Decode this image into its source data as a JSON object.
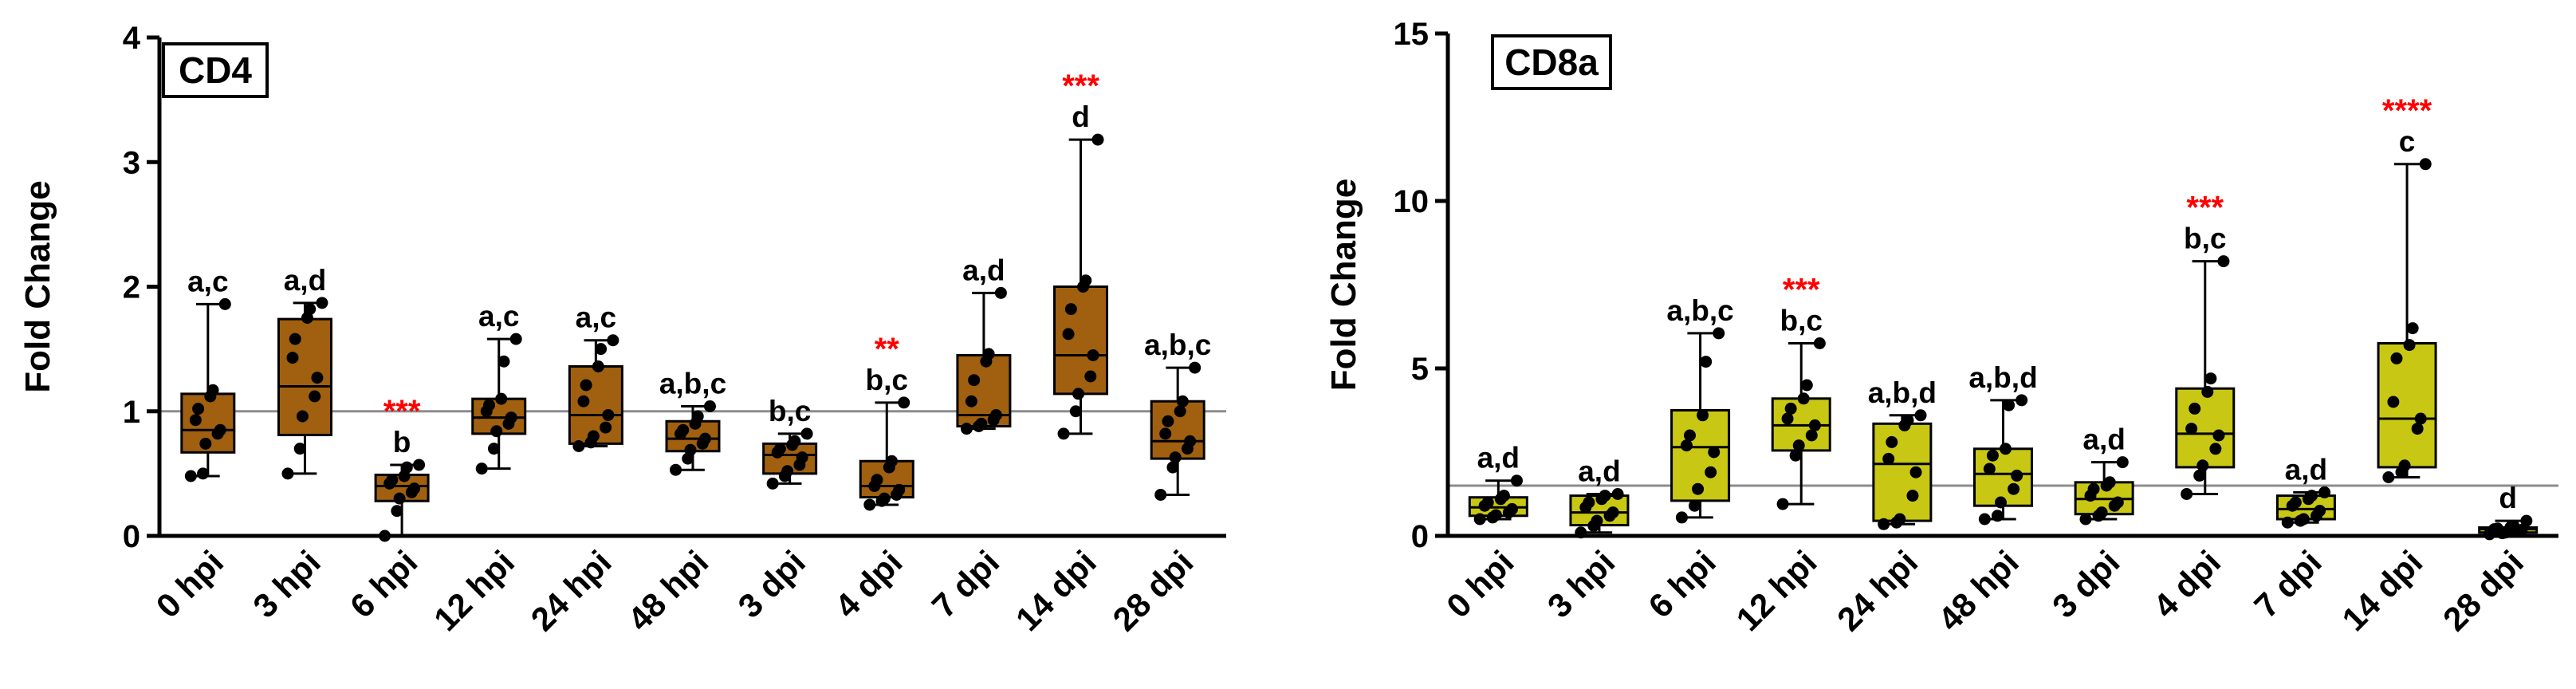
{
  "chart_data": [
    {
      "type": "box",
      "title": "CD4",
      "ylabel": "Fold Change",
      "xlabel": "",
      "ylim": [
        0,
        4
      ],
      "yticks": [
        0,
        1,
        2,
        3,
        4
      ],
      "reference_line": 1,
      "box_color": "#a0600f",
      "categories": [
        "0 hpi",
        "3 hpi",
        "6 hpi",
        "12 hpi",
        "24 hpi",
        "48 hpi",
        "3 dpi",
        "4 dpi",
        "7 dpi",
        "14 dpi",
        "28 dpi"
      ],
      "boxes": [
        {
          "min": 0.48,
          "q1": 0.67,
          "median": 0.85,
          "q3": 1.14,
          "max": 1.86,
          "letters": "a,c",
          "stars": "",
          "points": [
            0.48,
            0.5,
            0.74,
            0.82,
            0.85,
            0.93,
            1.02,
            1.12,
            1.17,
            1.86
          ]
        },
        {
          "min": 0.5,
          "q1": 0.81,
          "median": 1.2,
          "q3": 1.74,
          "max": 1.87,
          "letters": "a,d",
          "stars": "",
          "points": [
            0.5,
            0.7,
            0.96,
            1.12,
            1.27,
            1.43,
            1.58,
            1.75,
            1.82,
            1.87
          ]
        },
        {
          "min": 0.0,
          "q1": 0.28,
          "median": 0.4,
          "q3": 0.49,
          "max": 0.57,
          "letters": "b",
          "stars": "***",
          "points": [
            0.0,
            0.2,
            0.3,
            0.35,
            0.38,
            0.42,
            0.45,
            0.48,
            0.55,
            0.57
          ]
        },
        {
          "min": 0.54,
          "q1": 0.82,
          "median": 0.95,
          "q3": 1.1,
          "max": 1.58,
          "letters": "a,c",
          "stars": "",
          "points": [
            0.54,
            0.7,
            0.84,
            0.9,
            0.95,
            1.0,
            1.05,
            1.1,
            1.4,
            1.58
          ]
        },
        {
          "min": 0.72,
          "q1": 0.74,
          "median": 0.97,
          "q3": 1.36,
          "max": 1.57,
          "letters": "a,c",
          "stars": "",
          "points": [
            0.72,
            0.75,
            0.8,
            0.87,
            0.97,
            1.08,
            1.21,
            1.36,
            1.5,
            1.57
          ]
        },
        {
          "min": 0.53,
          "q1": 0.68,
          "median": 0.78,
          "q3": 0.92,
          "max": 1.04,
          "letters": "a,b,c",
          "stars": "",
          "points": [
            0.53,
            0.62,
            0.69,
            0.74,
            0.78,
            0.82,
            0.85,
            0.9,
            0.96,
            1.04
          ]
        },
        {
          "min": 0.42,
          "q1": 0.5,
          "median": 0.65,
          "q3": 0.74,
          "max": 0.82,
          "letters": "b,c",
          "stars": "",
          "points": [
            0.42,
            0.48,
            0.52,
            0.57,
            0.63,
            0.67,
            0.7,
            0.73,
            0.76,
            0.82
          ]
        },
        {
          "min": 0.25,
          "q1": 0.31,
          "median": 0.4,
          "q3": 0.6,
          "max": 1.07,
          "letters": "b,c",
          "stars": "**",
          "points": [
            0.25,
            0.28,
            0.3,
            0.33,
            0.37,
            0.4,
            0.45,
            0.55,
            0.6,
            1.07
          ]
        },
        {
          "min": 0.86,
          "q1": 0.88,
          "median": 0.97,
          "q3": 1.45,
          "max": 1.95,
          "letters": "a,d",
          "stars": "",
          "points": [
            0.86,
            0.88,
            0.9,
            0.93,
            0.97,
            1.08,
            1.25,
            1.4,
            1.46,
            1.95
          ]
        },
        {
          "min": 0.82,
          "q1": 1.14,
          "median": 1.45,
          "q3": 2.0,
          "max": 3.18,
          "letters": "d",
          "stars": "***",
          "points": [
            0.82,
            1.0,
            1.14,
            1.28,
            1.45,
            1.62,
            1.82,
            2.0,
            2.05,
            3.18
          ]
        },
        {
          "min": 0.33,
          "q1": 0.62,
          "median": 0.76,
          "q3": 1.08,
          "max": 1.35,
          "letters": "a,b,c",
          "stars": "",
          "points": [
            0.33,
            0.55,
            0.63,
            0.7,
            0.76,
            0.82,
            0.92,
            1.0,
            1.08,
            1.35
          ]
        }
      ]
    },
    {
      "type": "box",
      "title": "CD8a",
      "ylabel": "Fold Change",
      "xlabel": "",
      "ylim": [
        0,
        15
      ],
      "yticks": [
        0,
        5,
        10,
        15
      ],
      "reference_line": 1.5,
      "box_color": "#c8c814",
      "categories": [
        "0 hpi",
        "3 hpi",
        "6 hpi",
        "12 hpi",
        "24 hpi",
        "48 hpi",
        "3 dpi",
        "4 dpi",
        "7 dpi",
        "14 dpi",
        "28 dpi"
      ],
      "boxes": [
        {
          "min": 0.5,
          "q1": 0.6,
          "median": 0.85,
          "q3": 1.15,
          "max": 1.65,
          "letters": "a,d",
          "stars": "",
          "points": [
            0.5,
            0.55,
            0.62,
            0.7,
            0.8,
            0.9,
            1.0,
            1.1,
            1.2,
            1.65
          ]
        },
        {
          "min": 0.1,
          "q1": 0.32,
          "median": 0.7,
          "q3": 1.2,
          "max": 1.25,
          "letters": "a,d",
          "stars": "",
          "points": [
            0.1,
            0.3,
            0.45,
            0.6,
            0.7,
            0.85,
            1.0,
            1.1,
            1.2,
            1.25
          ]
        },
        {
          "min": 0.55,
          "q1": 1.05,
          "median": 2.65,
          "q3": 3.75,
          "max": 6.05,
          "letters": "a,b,c",
          "stars": "",
          "points": [
            0.55,
            0.9,
            1.4,
            1.9,
            2.5,
            2.7,
            3.0,
            3.6,
            5.2,
            6.05
          ]
        },
        {
          "min": 0.95,
          "q1": 2.55,
          "median": 3.3,
          "q3": 4.1,
          "max": 5.75,
          "letters": "b,c",
          "stars": "***",
          "points": [
            0.95,
            2.4,
            2.7,
            3.0,
            3.3,
            3.5,
            3.8,
            4.1,
            4.5,
            5.75
          ]
        },
        {
          "min": 0.35,
          "q1": 0.45,
          "median": 2.15,
          "q3": 3.35,
          "max": 3.6,
          "letters": "a,b,d",
          "stars": "",
          "points": [
            0.35,
            0.4,
            0.5,
            1.2,
            1.9,
            2.3,
            2.8,
            3.3,
            3.45,
            3.6
          ]
        },
        {
          "min": 0.5,
          "q1": 0.9,
          "median": 1.85,
          "q3": 2.6,
          "max": 4.05,
          "letters": "a,b,d",
          "stars": "",
          "points": [
            0.5,
            0.6,
            1.0,
            1.4,
            1.8,
            2.0,
            2.4,
            2.6,
            3.9,
            4.05
          ]
        },
        {
          "min": 0.5,
          "q1": 0.65,
          "median": 1.1,
          "q3": 1.6,
          "max": 2.2,
          "letters": "a,d",
          "stars": "",
          "points": [
            0.5,
            0.6,
            0.7,
            0.9,
            1.0,
            1.2,
            1.4,
            1.5,
            1.6,
            2.2
          ]
        },
        {
          "min": 1.25,
          "q1": 2.05,
          "median": 3.05,
          "q3": 4.4,
          "max": 8.2,
          "letters": "b,c",
          "stars": "***",
          "points": [
            1.25,
            1.8,
            2.1,
            2.6,
            3.0,
            3.2,
            3.8,
            4.3,
            4.7,
            8.2
          ]
        },
        {
          "min": 0.4,
          "q1": 0.5,
          "median": 0.8,
          "q3": 1.2,
          "max": 1.3,
          "letters": "a,d",
          "stars": "",
          "points": [
            0.4,
            0.45,
            0.5,
            0.6,
            0.75,
            0.9,
            1.0,
            1.1,
            1.2,
            1.3
          ]
        },
        {
          "min": 1.75,
          "q1": 2.05,
          "median": 3.5,
          "q3": 5.75,
          "max": 11.1,
          "letters": "c",
          "stars": "****",
          "points": [
            1.75,
            1.9,
            2.1,
            3.2,
            3.5,
            4.0,
            5.3,
            5.7,
            6.2,
            11.1
          ]
        },
        {
          "min": 0.05,
          "q1": 0.1,
          "median": 0.2,
          "q3": 0.25,
          "max": 0.45,
          "letters": "d",
          "stars": "",
          "points": [
            0.05,
            0.08,
            0.1,
            0.14,
            0.18,
            0.2,
            0.22,
            0.25,
            0.3,
            0.45
          ]
        }
      ]
    }
  ]
}
